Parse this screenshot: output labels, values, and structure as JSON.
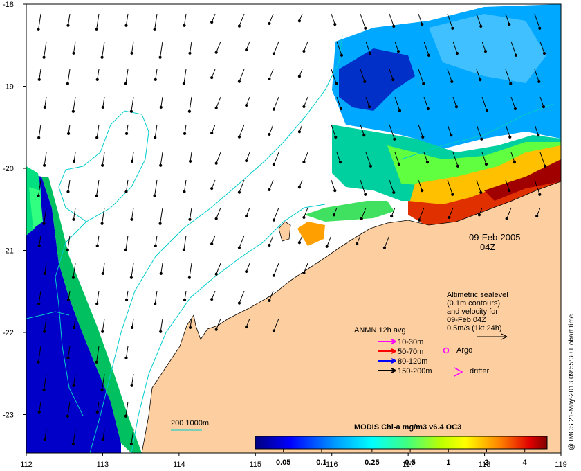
{
  "map": {
    "lon_ticks": [
      "112",
      "113",
      "114",
      "115",
      "116",
      "117",
      "118",
      "119"
    ],
    "lat_ticks": [
      "-18",
      "-19",
      "-20",
      "-21",
      "-22",
      "-23"
    ],
    "date_line1": "09-Feb-2005",
    "date_line2": "04Z",
    "altimetry_text": [
      "Altimetric sealevel",
      "(0.1m contours)",
      "and velocity for",
      "09-Feb 04Z",
      "0.5m/s (1kt 24h)"
    ],
    "anmn_title": "ANMN 12h avg",
    "anmn_items": [
      {
        "label": "10-30m",
        "color": "#ff00ff"
      },
      {
        "label": "50-70m",
        "color": "#ff0000"
      },
      {
        "label": "80-120m",
        "color": "#0000ff"
      },
      {
        "label": "150-200m",
        "color": "#000000"
      }
    ],
    "argo_label": "Argo",
    "argo_color": "#ff00ff",
    "drifter_label": "drifter",
    "drifter_color": "#ff00ff",
    "depth_label": "200  1000m",
    "contour_color": "#00cccc",
    "land_color": "#fdcfa0",
    "colorbar_title": "MODIS Chl-a mg/m3 v6.4 OC3",
    "colorbar_ticks": [
      "0.05",
      "0.1",
      "0.25",
      "0.5",
      "1",
      "2",
      "4"
    ],
    "credit": "@ IMOS 21-May-2013 09:55:30 Hobart time"
  }
}
